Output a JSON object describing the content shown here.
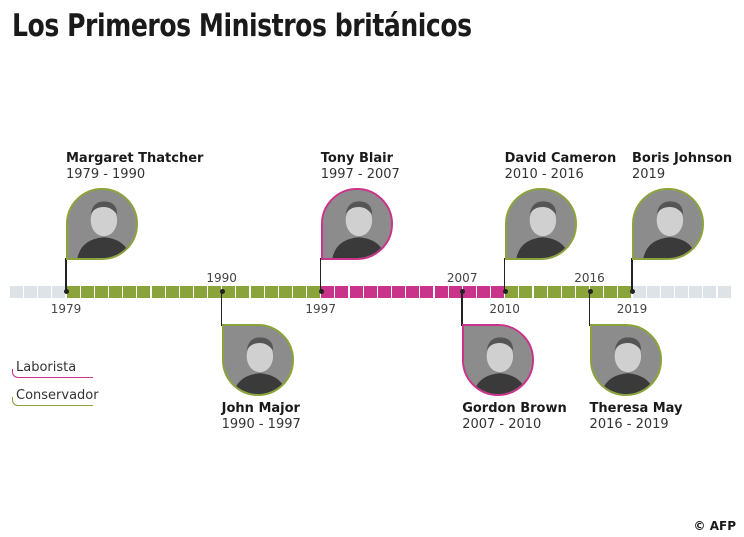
{
  "title": "Los Primeros Ministros británicos",
  "colors": {
    "laborista": "#c9338a",
    "conservador": "#8aa33a",
    "track": "#dde3e6"
  },
  "legend": [
    {
      "label": "Laborista",
      "party": "laborista"
    },
    {
      "label": "Conservador",
      "party": "conservador"
    }
  ],
  "timeline": {
    "start": 1979,
    "end": 2019,
    "year_labels": [
      "1979",
      "1990",
      "1997",
      "2007",
      "2010",
      "2016",
      "2019"
    ]
  },
  "ministers": [
    {
      "name": "Margaret Thatcher",
      "term": "1979 - 1990",
      "start": 1979,
      "end": 1990,
      "party": "conservador",
      "position": "above"
    },
    {
      "name": "John Major",
      "term": "1990 - 1997",
      "start": 1990,
      "end": 1997,
      "party": "conservador",
      "position": "below"
    },
    {
      "name": "Tony Blair",
      "term": "1997 - 2007",
      "start": 1997,
      "end": 2007,
      "party": "laborista",
      "position": "above"
    },
    {
      "name": "Gordon Brown",
      "term": "2007 - 2010",
      "start": 2007,
      "end": 2010,
      "party": "laborista",
      "position": "below"
    },
    {
      "name": "David Cameron",
      "term": "2010 - 2016",
      "start": 2010,
      "end": 2016,
      "party": "conservador",
      "position": "above"
    },
    {
      "name": "Theresa May",
      "term": "2016 - 2019",
      "start": 2016,
      "end": 2019,
      "party": "conservador",
      "position": "below"
    },
    {
      "name": "Boris Johnson",
      "term": "2019",
      "start": 2019,
      "end": 2019,
      "party": "conservador",
      "position": "above"
    }
  ],
  "credit": "© AFP"
}
